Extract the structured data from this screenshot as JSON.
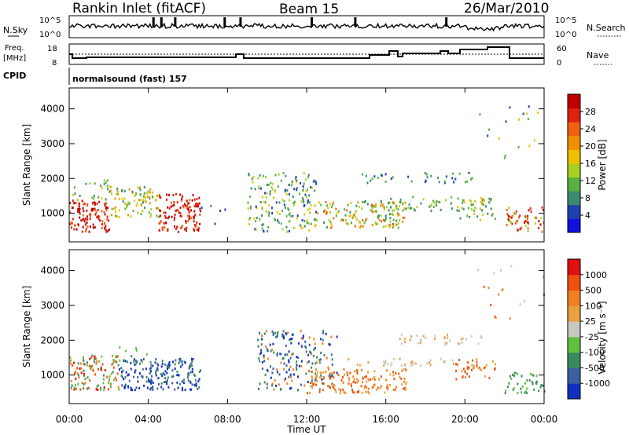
{
  "header": {
    "station": "Rankin Inlet (fitACF)",
    "beam": "Beam 15",
    "date": "26/Mar/2010"
  },
  "summary_panels": {
    "nsky_label": "N.Sky",
    "nsky_ticks": [
      "10^5",
      "10^0"
    ],
    "nsearch_label": "N.Search",
    "nsearch_ticks": [
      "10^5",
      "10^0"
    ],
    "freq_label_1": "Freq.",
    "freq_label_2": "[MHz]",
    "freq_ticks": [
      "18",
      "8"
    ],
    "nave_label": "Nave",
    "nave_ticks": [
      "60",
      "0"
    ],
    "cpid_label": "CPID",
    "cpid_text": "normalsound (fast) 157"
  },
  "chart_data": [
    {
      "type": "heatmap",
      "title": "",
      "xlabel": "Time UT",
      "ylabel": "Slant Range [km]",
      "x_ticks": [
        "00:00",
        "04:00",
        "08:00",
        "12:00",
        "16:00",
        "20:00",
        "00:00"
      ],
      "xlim_hours": [
        0,
        24
      ],
      "ylim": [
        180,
        4600
      ],
      "y_ticks": [
        1000,
        2000,
        3000,
        4000
      ],
      "grid": false,
      "colorbar": {
        "label": "Power [dB]",
        "ticks": [
          "28",
          "24",
          "20",
          "16",
          "12",
          "8",
          "4"
        ],
        "colors": [
          "#1010e0",
          "#2040b0",
          "#3a8a70",
          "#58b040",
          "#a8d020",
          "#f0c000",
          "#f09000",
          "#f06010",
          "#e02010",
          "#c00000"
        ]
      }
    },
    {
      "type": "heatmap",
      "title": "",
      "xlabel": "Time UT",
      "ylabel": "Slant Range [km]",
      "x_ticks": [
        "00:00",
        "04:00",
        "08:00",
        "12:00",
        "16:00",
        "20:00",
        "00:00"
      ],
      "xlim_hours": [
        0,
        24
      ],
      "ylim": [
        180,
        4600
      ],
      "y_ticks": [
        1000,
        2000,
        3000,
        4000
      ],
      "grid": false,
      "colorbar": {
        "label": "Velocity [m s⁻¹]",
        "ticks": [
          "1000",
          "500",
          "100",
          "25",
          "-25",
          "-100",
          "-500",
          "-1000"
        ],
        "colors": [
          "#1030c0",
          "#3a60a0",
          "#3a8a60",
          "#60c040",
          "#c8c8c0",
          "#e8a040",
          "#f08020",
          "#f05010",
          "#e01010"
        ]
      }
    }
  ]
}
